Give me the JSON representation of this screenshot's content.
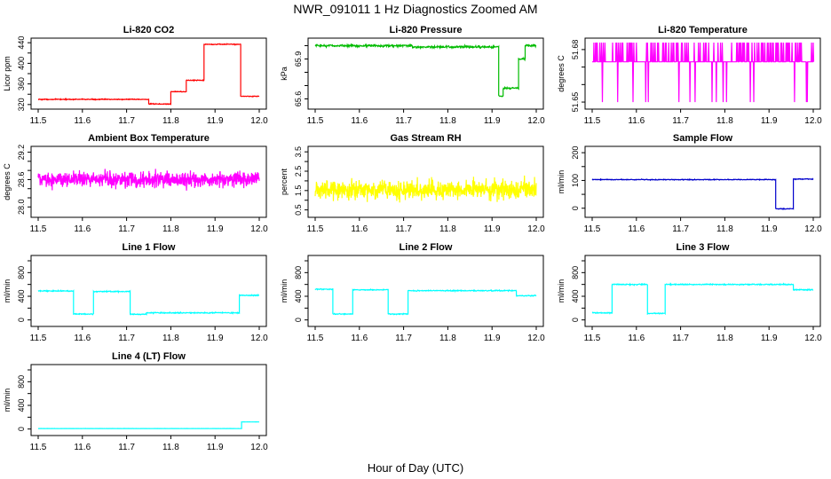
{
  "figure": {
    "title": "NWR_091011  1 Hz Diagnostics Zoomed AM",
    "xlabel": "Hour of Day (UTC)"
  },
  "chart_data": [
    {
      "type": "line",
      "title": "Li-820 CO2",
      "ylabel": "Licor ppm",
      "color": "#ff0000",
      "xlim": [
        11.5,
        12.0
      ],
      "ylim": [
        318,
        442
      ],
      "xticks": [
        "11.5",
        "11.6",
        "11.7",
        "11.8",
        "11.9",
        "12.0"
      ],
      "yticks": [
        320,
        340,
        360,
        380,
        400,
        420,
        440
      ],
      "yticks_labeled": [
        "320",
        "360",
        "400",
        "440"
      ],
      "noise": 0.6,
      "segments": [
        [
          11.5,
          11.75,
          330
        ],
        [
          11.75,
          11.8,
          321
        ],
        [
          11.8,
          11.835,
          345
        ],
        [
          11.835,
          11.875,
          367
        ],
        [
          11.875,
          11.958,
          437
        ],
        [
          11.958,
          12.0,
          336
        ]
      ]
    },
    {
      "type": "line",
      "title": "Li-820 Pressure",
      "ylabel": "kPa",
      "color": "#00bb00",
      "xlim": [
        11.5,
        12.0
      ],
      "ylim": [
        65.55,
        66.03
      ],
      "xticks": [
        "11.5",
        "11.6",
        "11.7",
        "11.8",
        "11.9",
        "12.0"
      ],
      "yticks": [
        65.6,
        65.7,
        65.8,
        65.9,
        66.0
      ],
      "yticks_labeled": [
        "65.6",
        "65.9"
      ],
      "noise": 0.006,
      "segments": [
        [
          11.5,
          11.72,
          66.0
        ],
        [
          11.72,
          11.915,
          65.99
        ],
        [
          11.915,
          11.925,
          65.62
        ],
        [
          11.925,
          11.96,
          65.68
        ],
        [
          11.96,
          11.975,
          65.9
        ],
        [
          11.975,
          12.0,
          66.0
        ]
      ]
    },
    {
      "type": "line",
      "title": "Li-820 Temperature",
      "ylabel": "degrees C",
      "color": "#ff00ff",
      "xlim": [
        11.5,
        12.0
      ],
      "ylim": [
        51.648,
        51.6845
      ],
      "xticks": [
        "11.5",
        "11.6",
        "11.7",
        "11.8",
        "11.9",
        "12.0"
      ],
      "yticks": [
        51.65,
        51.66,
        51.67,
        51.68
      ],
      "yticks_labeled": [
        "51.65",
        "51.68"
      ],
      "levels": [
        51.65,
        51.673,
        51.684
      ],
      "base_level": 51.673
    },
    {
      "type": "line",
      "title": "Ambient Box Temperature",
      "ylabel": "degrees C",
      "color": "#ff00ff",
      "xlim": [
        11.5,
        12.0
      ],
      "ylim": [
        27.85,
        29.25
      ],
      "xticks": [
        "11.5",
        "11.6",
        "11.7",
        "11.8",
        "11.9",
        "12.0"
      ],
      "yticks": [
        28.0,
        28.2,
        28.4,
        28.6,
        28.8,
        29.0,
        29.2
      ],
      "yticks_labeled": [
        "28.0",
        "28.6",
        "29.2"
      ],
      "mean": 28.6,
      "noise": 0.12
    },
    {
      "type": "line",
      "title": "Gas Stream RH",
      "ylabel": "percent",
      "color": "#ffff00",
      "xlim": [
        11.5,
        12.0
      ],
      "ylim": [
        0.3,
        3.6
      ],
      "xticks": [
        "11.5",
        "11.6",
        "11.7",
        "11.8",
        "11.9",
        "12.0"
      ],
      "yticks": [
        0.5,
        1.0,
        1.5,
        2.0,
        2.5,
        3.0,
        3.5
      ],
      "yticks_labeled": [
        "0.5",
        "1.5",
        "2.5",
        "3.5"
      ],
      "mean": 1.55,
      "noise": 0.35
    },
    {
      "type": "line",
      "title": "Sample Flow",
      "ylabel": "ml/min",
      "color": "#0000cc",
      "xlim": [
        11.5,
        12.0
      ],
      "ylim": [
        -20,
        210
      ],
      "xticks": [
        "11.5",
        "11.6",
        "11.7",
        "11.8",
        "11.9",
        "12.0"
      ],
      "yticks": [
        0,
        50,
        100,
        150,
        200
      ],
      "yticks_labeled": [
        "0",
        "100",
        "200"
      ],
      "noise": 1.0,
      "segments": [
        [
          11.5,
          11.915,
          103
        ],
        [
          11.915,
          11.955,
          -2
        ],
        [
          11.955,
          12.0,
          105
        ]
      ]
    },
    {
      "type": "line",
      "title": "Line 1 Flow",
      "ylabel": "ml/min",
      "color": "#00ffff",
      "xlim": [
        11.5,
        12.0
      ],
      "ylim": [
        -50,
        1030
      ],
      "xticks": [
        "11.5",
        "11.6",
        "11.7",
        "11.8",
        "11.9",
        "12.0"
      ],
      "yticks": [
        0,
        200,
        400,
        600,
        800,
        1000
      ],
      "yticks_labeled": [
        "0",
        "400",
        "800"
      ],
      "noise": 6,
      "segments": [
        [
          11.5,
          11.58,
          490
        ],
        [
          11.58,
          11.625,
          100
        ],
        [
          11.625,
          11.708,
          480
        ],
        [
          11.708,
          11.745,
          95
        ],
        [
          11.745,
          11.955,
          120
        ],
        [
          11.955,
          12.0,
          415
        ]
      ]
    },
    {
      "type": "line",
      "title": "Line 2 Flow",
      "ylabel": "ml/min",
      "color": "#00ffff",
      "xlim": [
        11.5,
        12.0
      ],
      "ylim": [
        -50,
        1030
      ],
      "xticks": [
        "11.5",
        "11.6",
        "11.7",
        "11.8",
        "11.9",
        "12.0"
      ],
      "yticks": [
        0,
        200,
        400,
        600,
        800,
        1000
      ],
      "yticks_labeled": [
        "0",
        "400",
        "800"
      ],
      "noise": 6,
      "segments": [
        [
          11.5,
          11.54,
          520
        ],
        [
          11.54,
          11.585,
          100
        ],
        [
          11.585,
          11.665,
          510
        ],
        [
          11.665,
          11.71,
          100
        ],
        [
          11.71,
          11.955,
          495
        ],
        [
          11.955,
          12.0,
          410
        ]
      ]
    },
    {
      "type": "line",
      "title": "Line 3 Flow",
      "ylabel": "ml/min",
      "color": "#00ffff",
      "xlim": [
        11.5,
        12.0
      ],
      "ylim": [
        -50,
        1030
      ],
      "xticks": [
        "11.5",
        "11.6",
        "11.7",
        "11.8",
        "11.9",
        "12.0"
      ],
      "yticks": [
        0,
        200,
        400,
        600,
        800,
        1000
      ],
      "yticks_labeled": [
        "0",
        "400",
        "800"
      ],
      "noise": 6,
      "segments": [
        [
          11.5,
          11.545,
          120
        ],
        [
          11.545,
          11.625,
          600
        ],
        [
          11.625,
          11.665,
          110
        ],
        [
          11.665,
          11.955,
          600
        ],
        [
          11.955,
          12.0,
          510
        ]
      ]
    },
    {
      "type": "line",
      "title": "Line 4 (LT) Flow",
      "ylabel": "ml/min",
      "color": "#00ffff",
      "xlim": [
        11.5,
        12.0
      ],
      "ylim": [
        -50,
        1030
      ],
      "xticks": [
        "11.5",
        "11.6",
        "11.7",
        "11.8",
        "11.9",
        "12.0"
      ],
      "yticks": [
        0,
        200,
        400,
        600,
        800,
        1000
      ],
      "yticks_labeled": [
        "0",
        "400",
        "800"
      ],
      "noise": 1,
      "segments": [
        [
          11.5,
          11.96,
          8
        ],
        [
          11.96,
          12.0,
          120
        ]
      ]
    }
  ]
}
